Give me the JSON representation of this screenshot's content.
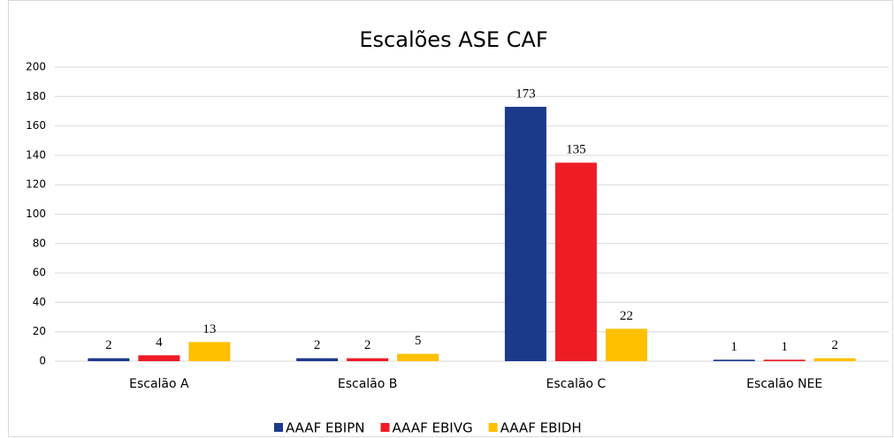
{
  "chart_data": {
    "type": "bar",
    "title": "Escalões ASE CAF",
    "categories": [
      "Escalão A",
      "Escalão B",
      "Escalão C",
      "Escalão NEE"
    ],
    "series": [
      {
        "name": "AAAF EBIPN",
        "color": "#1c3a8c",
        "values": [
          2,
          2,
          173,
          1
        ]
      },
      {
        "name": "AAAF EBIVG",
        "color": "#ee1c25",
        "values": [
          4,
          2,
          135,
          1
        ]
      },
      {
        "name": "AAAF EBIDH",
        "color": "#ffc000",
        "values": [
          13,
          5,
          22,
          2
        ]
      }
    ],
    "ylim": [
      0,
      200
    ],
    "yticks": [
      0,
      20,
      40,
      60,
      80,
      100,
      120,
      140,
      160,
      180,
      200
    ],
    "grid": true,
    "legend": "bottom"
  }
}
